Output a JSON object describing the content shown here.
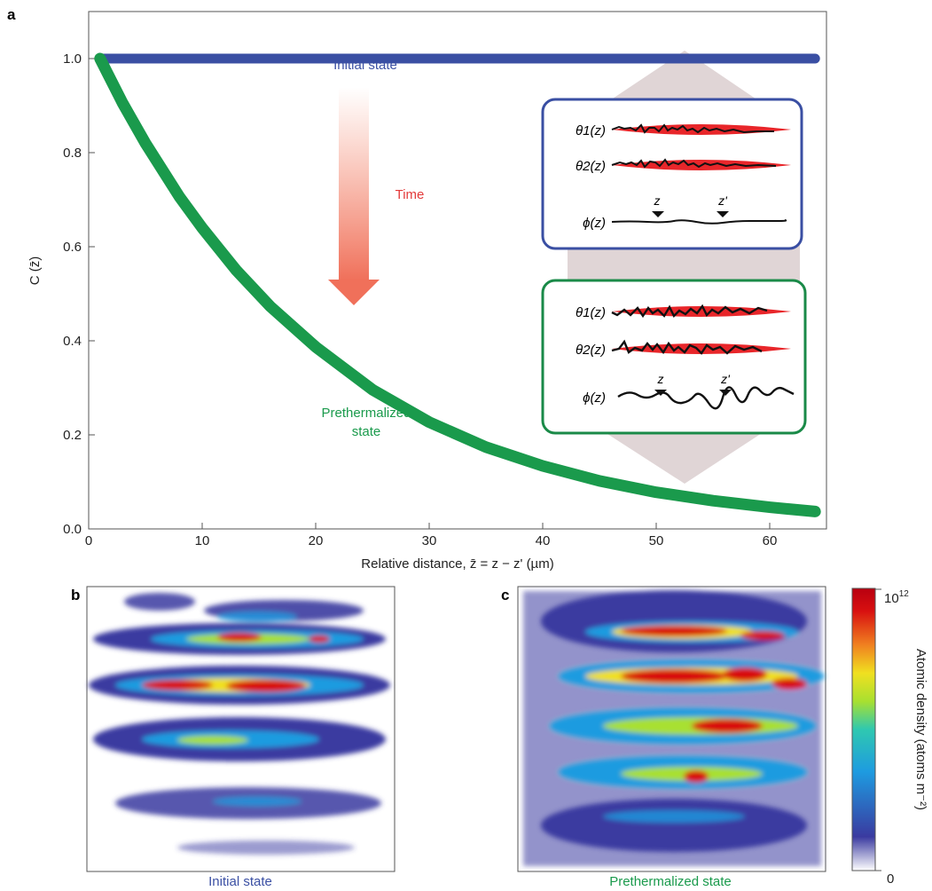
{
  "panels": {
    "a": "a",
    "b": "b",
    "c": "c"
  },
  "chart_data": {
    "type": "line",
    "xlabel": "Relative distance, z̄ = z − z' (µm)",
    "ylabel": "C (z̄)",
    "xlim": [
      0,
      65
    ],
    "ylim": [
      0,
      1.1
    ],
    "xticks": [
      0,
      10,
      20,
      30,
      40,
      50,
      60
    ],
    "yticks": [
      0.0,
      0.2,
      0.4,
      0.6,
      0.8,
      1.0
    ],
    "grid": false,
    "series": [
      {
        "name": "Initial state",
        "color": "#3a4fa3",
        "x": [
          1,
          5,
          10,
          15,
          20,
          25,
          30,
          35,
          40,
          45,
          50,
          55,
          60,
          64
        ],
        "y": [
          1.0,
          1.0,
          1.0,
          1.0,
          1.0,
          1.0,
          1.0,
          1.0,
          1.0,
          1.0,
          1.0,
          1.0,
          1.0,
          1.0
        ]
      },
      {
        "name": "Prethermalized state",
        "color": "#1a9a4c",
        "x": [
          1,
          3,
          5,
          8,
          10,
          13,
          16,
          20,
          25,
          30,
          35,
          40,
          45,
          50,
          55,
          60,
          64
        ],
        "y": [
          1.0,
          0.905,
          0.82,
          0.706,
          0.64,
          0.55,
          0.473,
          0.387,
          0.296,
          0.227,
          0.174,
          0.134,
          0.102,
          0.078,
          0.06,
          0.046,
          0.037
        ]
      }
    ],
    "annotations": {
      "time": "Time",
      "theta1": "θ1(z)",
      "theta2": "θ2(z)",
      "phi": "ϕ(z)",
      "z": "z",
      "zprime": "z'"
    }
  },
  "heatmaps": {
    "b_label": "Initial state",
    "c_label": "Prethermalized state"
  },
  "colorbar": {
    "title": "Atomic density (atoms m⁻²)",
    "max_label": "10",
    "max_exp": "12",
    "min_label": "0",
    "colors": [
      "#ffffff",
      "#3a3aa0",
      "#1e9be0",
      "#2fc8b0",
      "#a8e030",
      "#f0e020",
      "#f08020",
      "#d81010",
      "#b80010"
    ]
  }
}
